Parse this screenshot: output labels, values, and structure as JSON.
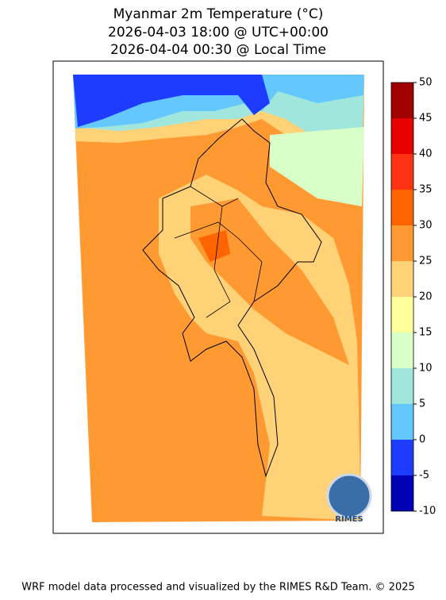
{
  "title": [
    "Myanmar 2m Temperature (°C)",
    "2026-04-03 18:00 @ UTC+00:00",
    "2026-04-04 00:30 @ Local Time"
  ],
  "colorbar": {
    "ticks": [
      -10,
      -5,
      0,
      5,
      10,
      15,
      20,
      25,
      30,
      35,
      40,
      45,
      50
    ],
    "colors": [
      "#0000b4",
      "#1e3cff",
      "#64c8ff",
      "#a0e6dc",
      "#d9ffc8",
      "#ffff99",
      "#ffd278",
      "#ff9a32",
      "#ff6400",
      "#ff3214",
      "#e60000",
      "#a00000"
    ]
  },
  "logo": "RIMES",
  "footer": "WRF model data processed and visualized by the RIMES R&D Team. © 2025"
}
